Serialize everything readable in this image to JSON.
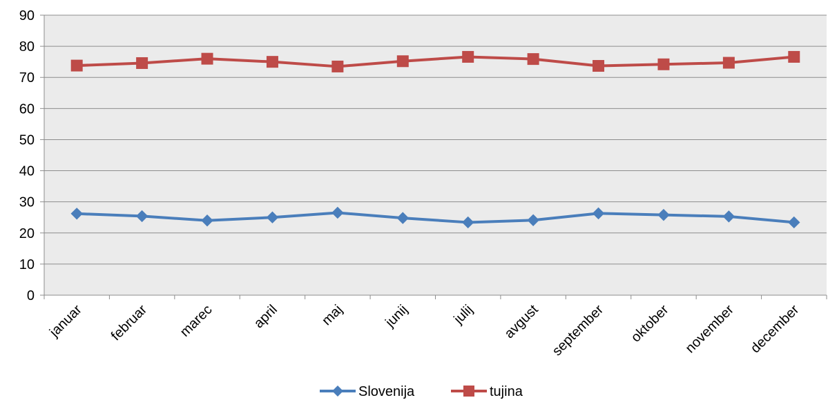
{
  "chart_data": {
    "type": "line",
    "title": "",
    "xlabel": "",
    "ylabel": "",
    "categories": [
      "januar",
      "februar",
      "marec",
      "april",
      "maj",
      "junij",
      "julij",
      "avgust",
      "september",
      "oktober",
      "november",
      "december"
    ],
    "ylim": [
      0,
      90
    ],
    "yticks": [
      0,
      10,
      20,
      30,
      40,
      50,
      60,
      70,
      80,
      90
    ],
    "grid": true,
    "legend_position": "bottom",
    "series": [
      {
        "name": "Slovenija",
        "color": "#4A7EBB",
        "marker": "diamond",
        "values": [
          26.2,
          25.4,
          24.0,
          25.0,
          26.5,
          24.8,
          23.4,
          24.1,
          26.3,
          25.8,
          25.3,
          23.4
        ]
      },
      {
        "name": "tujina",
        "color": "#BE4B48",
        "marker": "square",
        "values": [
          73.8,
          74.6,
          76.0,
          75.0,
          73.5,
          75.2,
          76.6,
          75.9,
          73.7,
          74.2,
          74.7,
          76.6
        ]
      }
    ]
  }
}
